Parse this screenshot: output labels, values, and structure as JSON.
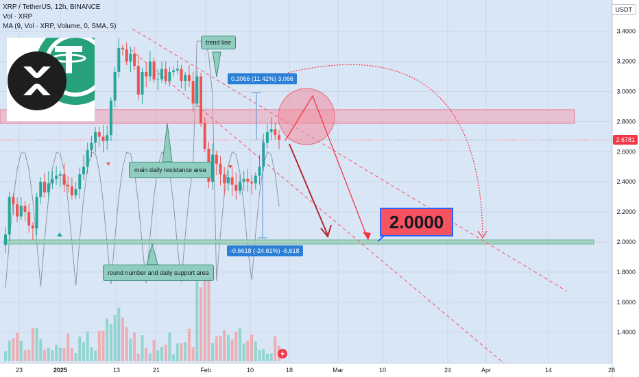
{
  "legend": {
    "title": "XRP / TetherUS, 12h, BINANCE",
    "volume": "Vol · XRP",
    "ma": "MA (9, Vol · XRP, Volume, 0, SMA, 5)"
  },
  "currency": "USDT",
  "last_price": "2.6781",
  "callouts": {
    "trend_line": "trend line",
    "resistance": "main daily resistance area",
    "support": "round number and daily support area"
  },
  "measurements": {
    "up": "0.3066 (11.42%) 3,066",
    "down": "-0.6618 (-24.61%) -6,618"
  },
  "target": "2.0000",
  "chart_data": {
    "type": "candlestick",
    "title": "XRP / TetherUS, 12h, BINANCE",
    "y_ticks": [
      "3.4000",
      "3.2000",
      "3.0000",
      "2.8000",
      "2.6000",
      "2.4000",
      "2.2000",
      "2.0000",
      "1.8000",
      "1.6000",
      "1.4000"
    ],
    "ylim": [
      1.3,
      3.48
    ],
    "x_ticks": [
      "23",
      "2025",
      "13",
      "21",
      "Feb",
      "10",
      "18",
      "Mar",
      "10",
      "24",
      "Apr",
      "14",
      "28"
    ],
    "last_price": 2.6781,
    "resistance_zone": [
      2.79,
      2.87
    ],
    "support_zone": [
      1.99,
      2.02
    ],
    "target": 2.0,
    "closes": [
      2.05,
      2.3,
      2.25,
      2.17,
      2.24,
      2.2,
      2.11,
      2.09,
      2.3,
      2.4,
      2.33,
      2.39,
      2.42,
      2.44,
      2.45,
      2.38,
      2.37,
      2.31,
      2.35,
      2.45,
      2.5,
      2.61,
      2.66,
      2.73,
      2.7,
      2.67,
      2.71,
      2.94,
      3.13,
      3.29,
      3.28,
      3.2,
      3.25,
      3.17,
      2.98,
      3.13,
      3.1,
      3.2,
      3.08,
      3.08,
      3.15,
      3.07,
      3.13,
      3.14,
      3.15,
      3.07,
      3.11,
      3.07,
      2.92,
      3.1,
      2.79,
      2.62,
      2.4,
      2.58,
      2.52,
      2.45,
      2.39,
      2.43,
      2.38,
      2.34,
      2.4,
      2.42,
      2.4,
      2.39,
      2.44,
      2.5,
      2.66,
      2.73,
      2.75,
      2.71,
      2.68
    ],
    "volume_ma_note": "Vol · XRP"
  }
}
